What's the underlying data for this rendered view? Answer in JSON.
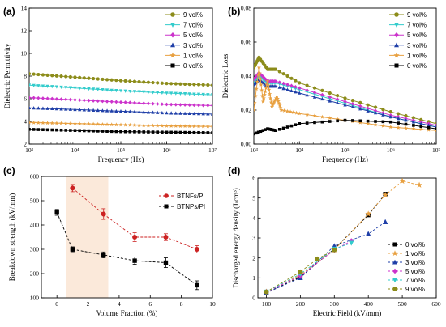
{
  "chart_data": [
    {
      "id": "a",
      "panel_label": "(a)",
      "type": "line",
      "xlabel": "Frequency (Hz)",
      "ylabel": "Dielectric Permittivity",
      "xscale": "log",
      "xlim": [
        1000,
        10000000
      ],
      "ylim": [
        2,
        14
      ],
      "xticks": [
        1000,
        10000,
        100000,
        1000000,
        10000000
      ],
      "xtick_labels": [
        "10³",
        "10⁴",
        "10⁵",
        "10⁶",
        "10⁷"
      ],
      "yticks": [
        2,
        4,
        6,
        8,
        10,
        12,
        14
      ],
      "legend_position": "top-right",
      "series": [
        {
          "name": "9 vol%",
          "color": "#8c8c1a",
          "marker": "circle",
          "x": [
            1000,
            10000,
            100000,
            1000000,
            10000000
          ],
          "y": [
            8.2,
            7.9,
            7.6,
            7.35,
            7.2
          ]
        },
        {
          "name": "7 vol%",
          "color": "#33cccc",
          "marker": "triangle-down",
          "x": [
            1000,
            10000,
            100000,
            1000000,
            10000000
          ],
          "y": [
            7.2,
            6.95,
            6.7,
            6.5,
            6.35
          ]
        },
        {
          "name": "5 vol%",
          "color": "#cc33cc",
          "marker": "diamond",
          "x": [
            1000,
            10000,
            100000,
            1000000,
            10000000
          ],
          "y": [
            6.1,
            5.9,
            5.7,
            5.5,
            5.4
          ]
        },
        {
          "name": "3 vol%",
          "color": "#1f3fa8",
          "marker": "triangle-up",
          "x": [
            1000,
            10000,
            100000,
            1000000,
            10000000
          ],
          "y": [
            5.2,
            5.05,
            4.9,
            4.75,
            4.65
          ]
        },
        {
          "name": "1 vol%",
          "color": "#e8a040",
          "marker": "star",
          "x": [
            1000,
            10000,
            100000,
            1000000,
            10000000
          ],
          "y": [
            3.9,
            3.8,
            3.7,
            3.6,
            3.55
          ]
        },
        {
          "name": "0 vol%",
          "color": "#000000",
          "marker": "square",
          "x": [
            1000,
            10000,
            100000,
            1000000,
            10000000
          ],
          "y": [
            3.3,
            3.2,
            3.1,
            3.05,
            3.0
          ]
        }
      ]
    },
    {
      "id": "b",
      "panel_label": "(b)",
      "type": "line",
      "xlabel": "Frequency (Hz)",
      "ylabel": "Dielectric Loss",
      "xscale": "log",
      "xlim": [
        1000,
        10000000
      ],
      "ylim": [
        0,
        0.08
      ],
      "xticks": [
        1000,
        10000,
        100000,
        1000000,
        10000000
      ],
      "xtick_labels": [
        "10³",
        "10⁴",
        "10⁵",
        "10⁶",
        "10⁷"
      ],
      "yticks": [
        0.0,
        0.02,
        0.04,
        0.06,
        0.08
      ],
      "ytick_labels": [
        "0.00",
        "0.02",
        "0.04",
        "0.06",
        "0.08"
      ],
      "legend_position": "top-right",
      "series": [
        {
          "name": "9 vol%",
          "color": "#8c8c1a",
          "marker": "circle",
          "x": [
            1000,
            1300,
            2000,
            3000,
            10000,
            100000,
            1000000,
            10000000
          ],
          "y": [
            0.045,
            0.051,
            0.044,
            0.044,
            0.036,
            0.027,
            0.019,
            0.012
          ]
        },
        {
          "name": "7 vol%",
          "color": "#33cccc",
          "marker": "triangle-down",
          "x": [
            1000,
            1300,
            2000,
            3000,
            10000,
            100000,
            1000000,
            10000000
          ],
          "y": [
            0.036,
            0.04,
            0.036,
            0.036,
            0.032,
            0.024,
            0.016,
            0.01
          ]
        },
        {
          "name": "5 vol%",
          "color": "#cc33cc",
          "marker": "diamond",
          "x": [
            1000,
            1300,
            2000,
            3000,
            10000,
            100000,
            1000000,
            10000000
          ],
          "y": [
            0.038,
            0.042,
            0.037,
            0.037,
            0.033,
            0.025,
            0.017,
            0.011
          ]
        },
        {
          "name": "3 vol%",
          "color": "#1f3fa8",
          "marker": "triangle-up",
          "x": [
            1000,
            1300,
            2000,
            3000,
            10000,
            100000,
            1000000,
            10000000
          ],
          "y": [
            0.035,
            0.038,
            0.034,
            0.034,
            0.03,
            0.023,
            0.016,
            0.01
          ]
        },
        {
          "name": "1 vol%",
          "color": "#e8a040",
          "marker": "star",
          "x": [
            1000,
            1300,
            1600,
            2000,
            2500,
            3200,
            4000,
            10000,
            100000,
            1000000,
            10000000
          ],
          "y": [
            0.02,
            0.045,
            0.025,
            0.037,
            0.022,
            0.028,
            0.02,
            0.018,
            0.014,
            0.01,
            0.008
          ]
        },
        {
          "name": "0 vol%",
          "color": "#000000",
          "marker": "square",
          "x": [
            1000,
            2000,
            3000,
            10000,
            100000,
            1000000,
            10000000
          ],
          "y": [
            0.006,
            0.009,
            0.008,
            0.012,
            0.014,
            0.013,
            0.009
          ]
        }
      ]
    },
    {
      "id": "c",
      "panel_label": "(c)",
      "type": "line",
      "xlabel": "Volume Fraction (%)",
      "ylabel": "Breakdown strength (kV/mm)",
      "xlim": [
        -1,
        10
      ],
      "ylim": [
        100,
        600
      ],
      "xticks": [
        0,
        2,
        4,
        6,
        8,
        10
      ],
      "yticks": [
        100,
        200,
        300,
        400,
        500,
        600
      ],
      "shaded_region": [
        0.6,
        3.3
      ],
      "legend_position": "top-right",
      "series": [
        {
          "name": "BTNFs/PI",
          "color": "#cc2222",
          "marker": "circle",
          "x": [
            1,
            3,
            5,
            7,
            9
          ],
          "y": [
            552,
            445,
            350,
            350,
            300
          ],
          "err": [
            15,
            22,
            18,
            14,
            15
          ]
        },
        {
          "name": "BTNPs/PI",
          "color": "#000000",
          "marker": "square",
          "x": [
            0,
            1,
            3,
            5,
            7,
            9
          ],
          "y": [
            452,
            300,
            277,
            253,
            245,
            152
          ],
          "err": [
            12,
            10,
            12,
            15,
            20,
            18
          ]
        }
      ]
    },
    {
      "id": "d",
      "panel_label": "(d)",
      "type": "line",
      "xlabel": "Electric Field (kV/mm)",
      "ylabel": "Discharged energy density (J/cm³)",
      "xlim": [
        75,
        600
      ],
      "ylim": [
        0,
        6
      ],
      "xticks": [
        100,
        200,
        300,
        400,
        500,
        600
      ],
      "yticks": [
        0,
        1,
        2,
        3,
        4,
        5,
        6
      ],
      "legend_position": "bottom-right",
      "series": [
        {
          "name": "0 vol%",
          "color": "#000000",
          "marker": "square",
          "x": [
            100,
            200,
            300,
            400,
            450
          ],
          "y": [
            0.25,
            1.05,
            2.45,
            4.15,
            5.2
          ]
        },
        {
          "name": "1 vol%",
          "color": "#e8a040",
          "marker": "star",
          "x": [
            100,
            200,
            300,
            400,
            450,
            500,
            550
          ],
          "y": [
            0.3,
            1.15,
            2.4,
            4.2,
            5.15,
            5.85,
            5.65
          ]
        },
        {
          "name": "3 vol%",
          "color": "#1f3fa8",
          "marker": "triangle-up",
          "x": [
            100,
            200,
            300,
            400,
            450
          ],
          "y": [
            0.25,
            1.0,
            2.6,
            3.2,
            3.8
          ]
        },
        {
          "name": "5 vol%",
          "color": "#cc33cc",
          "marker": "diamond",
          "x": [
            100,
            200,
            300,
            350
          ],
          "y": [
            0.3,
            1.1,
            2.4,
            2.85
          ]
        },
        {
          "name": "7 vol%",
          "color": "#33cccc",
          "marker": "triangle-down",
          "x": [
            100,
            200,
            300,
            350
          ],
          "y": [
            0.3,
            1.2,
            2.45,
            2.75
          ]
        },
        {
          "name": "9 vol%",
          "color": "#8c8c1a",
          "marker": "circle",
          "x": [
            100,
            200,
            250,
            300
          ],
          "y": [
            0.3,
            1.3,
            1.95,
            2.4
          ]
        }
      ]
    }
  ]
}
